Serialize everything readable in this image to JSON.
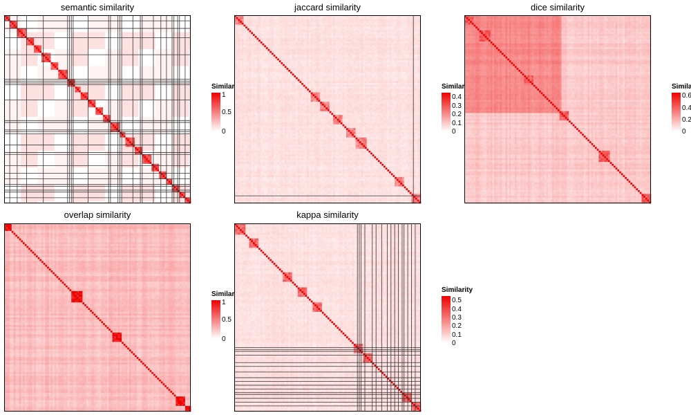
{
  "colors": {
    "low": "#ffffff",
    "high": "#ee0000",
    "grid": "#333333"
  },
  "chart_data": [
    {
      "type": "heatmap",
      "title": "semantic similarity",
      "n": 100,
      "legend": {
        "title": "Similarity",
        "ticks": [
          "1",
          "0.5",
          "0"
        ],
        "max": 1
      },
      "clusters": [
        [
          0,
          2
        ],
        [
          3,
          6
        ],
        [
          7,
          11
        ],
        [
          12,
          15
        ],
        [
          16,
          19
        ],
        [
          20,
          24
        ],
        [
          25,
          28
        ],
        [
          29,
          33
        ],
        [
          34,
          37
        ],
        [
          38,
          40
        ],
        [
          41,
          44
        ],
        [
          45,
          48
        ],
        [
          49,
          52
        ],
        [
          53,
          56
        ],
        [
          57,
          61
        ],
        [
          62,
          64
        ],
        [
          65,
          69
        ],
        [
          70,
          73
        ],
        [
          74,
          78
        ],
        [
          79,
          82
        ],
        [
          83,
          86
        ],
        [
          87,
          89
        ],
        [
          90,
          93
        ],
        [
          94,
          96
        ],
        [
          97,
          99
        ]
      ],
      "separators": [
        3,
        7,
        12,
        21,
        34,
        35,
        36,
        37,
        45,
        56,
        57,
        61,
        62,
        63,
        69,
        73,
        74,
        80,
        84,
        87,
        90,
        91,
        93,
        94,
        97
      ],
      "within": 0.55,
      "background": 0.0
    },
    {
      "type": "heatmap",
      "title": "jaccard similarity",
      "n": 100,
      "legend": {
        "title": "Similarity",
        "ticks": [
          "0.4",
          "0.3",
          "0.2",
          "0.1",
          "0"
        ],
        "max": 0.45
      },
      "clusters": [
        [
          0,
          4
        ],
        [
          41,
          45
        ],
        [
          46,
          50
        ],
        [
          53,
          57
        ],
        [
          60,
          64
        ],
        [
          65,
          70
        ],
        [
          86,
          90
        ],
        [
          95,
          99
        ]
      ],
      "separators": [
        96
      ],
      "within": 0.35,
      "background": 0.06
    },
    {
      "type": "heatmap",
      "title": "dice similarity",
      "n": 100,
      "legend": {
        "title": "Similarity",
        "ticks": [
          "0.6",
          "0.4",
          "0.2",
          "0"
        ],
        "max": 0.65
      },
      "clusters": [
        [
          0,
          4
        ],
        [
          8,
          13
        ],
        [
          32,
          36
        ],
        [
          51,
          55
        ],
        [
          72,
          77
        ],
        [
          95,
          99
        ]
      ],
      "separators": [],
      "within": 0.5,
      "background": 0.12
    },
    {
      "type": "heatmap",
      "title": "overlap similarity",
      "n": 100,
      "legend": {
        "title": "Similarity",
        "ticks": [
          "1",
          "0.5",
          "0"
        ],
        "max": 1
      },
      "clusters": [
        [
          0,
          3
        ],
        [
          36,
          41
        ],
        [
          58,
          62
        ],
        [
          92,
          96
        ],
        [
          97,
          99
        ]
      ],
      "separators": [],
      "within": 0.8,
      "background": 0.15
    },
    {
      "type": "heatmap",
      "title": "kappa similarity",
      "n": 100,
      "legend": {
        "title": "Similarity",
        "ticks": [
          "0.5",
          "0.4",
          "0.3",
          "0.2",
          "0.1",
          "0"
        ],
        "max": 0.55
      },
      "clusters": [
        [
          0,
          5
        ],
        [
          8,
          12
        ],
        [
          26,
          30
        ],
        [
          34,
          38
        ],
        [
          42,
          46
        ],
        [
          64,
          68
        ],
        [
          69,
          73
        ],
        [
          90,
          94
        ],
        [
          95,
          99
        ]
      ],
      "separators": [
        66,
        67,
        68,
        70,
        74,
        76,
        79,
        82,
        84,
        86,
        88,
        90,
        91,
        93,
        95,
        97
      ],
      "within": 0.45,
      "background": 0.06
    }
  ]
}
